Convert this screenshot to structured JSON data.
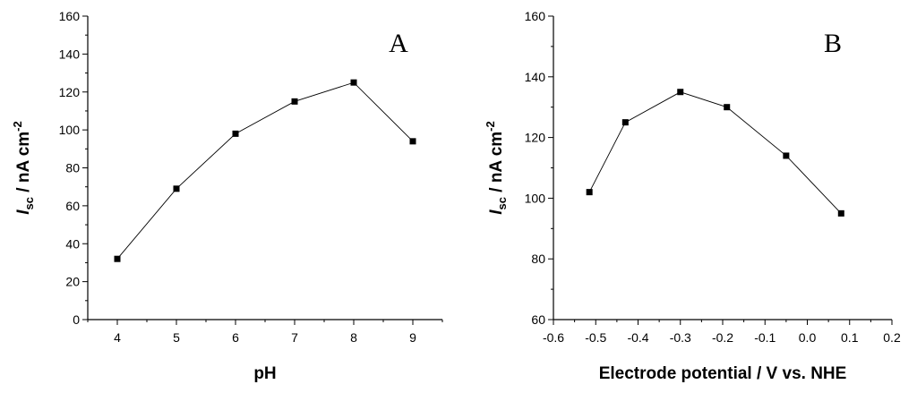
{
  "chart_data": [
    {
      "type": "line",
      "panel_label": "A",
      "xlabel": "pH",
      "ylabel": {
        "main": "I",
        "sub": "sc",
        "unit": " / nA cm",
        "sup": "-2"
      },
      "xlim": [
        3.5,
        9.5
      ],
      "ylim": [
        0,
        160
      ],
      "xticks": [
        4,
        5,
        6,
        7,
        8,
        9
      ],
      "yticks": [
        0,
        20,
        40,
        60,
        80,
        100,
        120,
        140,
        160
      ],
      "x": [
        4,
        5,
        6,
        7,
        8,
        9
      ],
      "y": [
        32,
        69,
        98,
        115,
        125,
        94
      ],
      "grid": false,
      "marker": "square"
    },
    {
      "type": "line",
      "panel_label": "B",
      "xlabel": "Electrode potential / V vs. NHE",
      "ylabel": {
        "main": "I",
        "sub": "sc",
        "unit": " / nA cm",
        "sup": "-2"
      },
      "xlim": [
        -0.6,
        0.2
      ],
      "ylim": [
        60,
        160
      ],
      "xticks": [
        -0.6,
        -0.5,
        -0.4,
        -0.3,
        -0.2,
        -0.1,
        0.0,
        0.1,
        0.2
      ],
      "xtick_labels": [
        "-0.6",
        "-0.5",
        "-0.4",
        "-0.3",
        "-0.2",
        "-0.1",
        "0.0",
        "0.1",
        "0.2"
      ],
      "yticks": [
        60,
        80,
        100,
        120,
        140,
        160
      ],
      "x": [
        -0.515,
        -0.43,
        -0.3,
        -0.19,
        -0.05,
        0.08
      ],
      "y": [
        102,
        125,
        135,
        130,
        114,
        95
      ],
      "grid": false,
      "marker": "square"
    }
  ]
}
